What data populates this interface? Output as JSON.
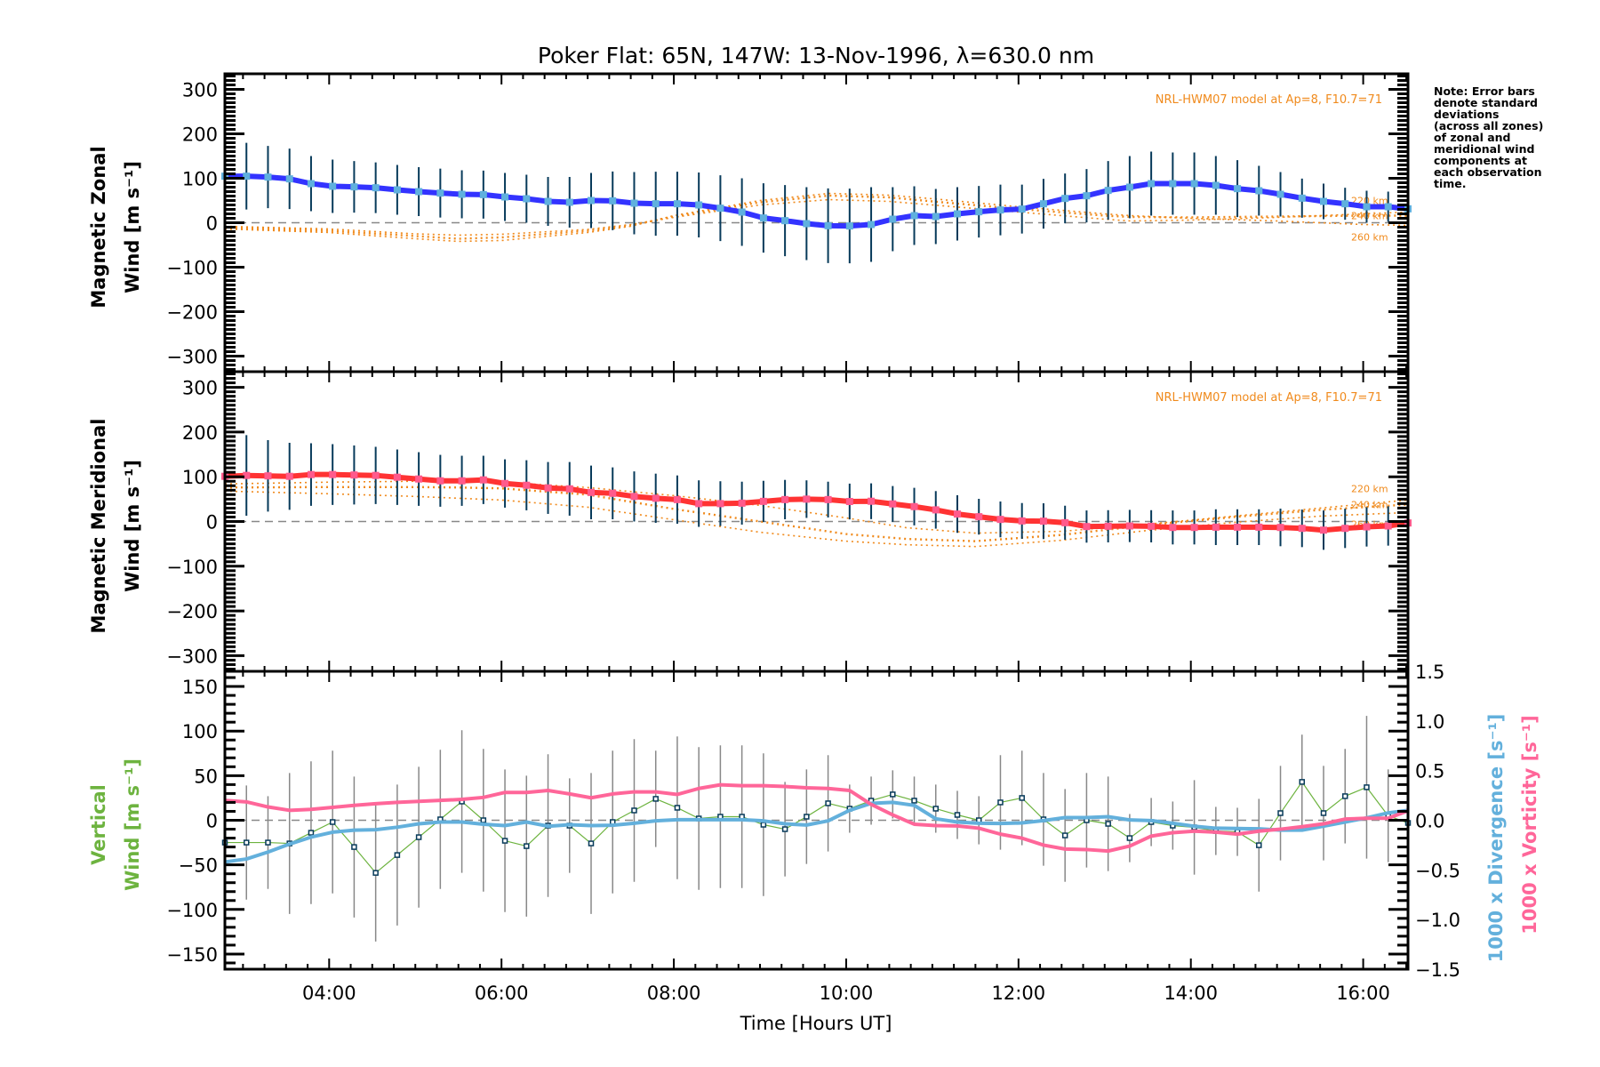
{
  "chart_data": {
    "type": "line",
    "title": "Poker Flat: 65N, 147W: 13-Nov-1996, λ=630.0 nm",
    "note": [
      "Note: Error bars",
      "denote standard",
      "deviations",
      "(across all zones)",
      "of zonal and",
      "meridional wind",
      "components at",
      "each observation",
      "time."
    ],
    "xlabel": "Time [Hours UT]",
    "x_ticks": [
      {
        "value": 4,
        "label": "04:00"
      },
      {
        "value": 6,
        "label": "06:00"
      },
      {
        "value": 8,
        "label": "08:00"
      },
      {
        "value": 10,
        "label": "10:00"
      },
      {
        "value": 12,
        "label": "12:00"
      },
      {
        "value": 14,
        "label": "14:00"
      },
      {
        "value": 16,
        "label": "16:00"
      }
    ],
    "xlim": [
      2.79,
      16.52
    ],
    "x_start_hours": 2.79,
    "x_step_hours": 0.25,
    "panels": [
      {
        "name": "zonal",
        "ylabel_lines": [
          "Magnetic Zonal",
          "Wind [m s⁻¹]"
        ],
        "ylim": [
          -335,
          335
        ],
        "y_ticks": [
          300,
          200,
          100,
          0,
          -100,
          -200,
          -300
        ],
        "model_label": "NRL-HWM07 model at Ap=8, F10.7=71",
        "series": [
          {
            "name": "Magnetic Zonal Wind",
            "color": "#3333ff",
            "values": [
              104.7,
              104.7,
              102.7,
              98.7,
              88,
              82,
              80.7,
              78.7,
              74,
              70,
              66.7,
              64,
              63.3,
              58,
              54,
              48,
              46,
              50,
              49.3,
              44,
              42.7,
              42.7,
              40,
              32.7,
              24,
              10.7,
              4.7,
              -2,
              -6.7,
              -7.3,
              -4,
              8,
              16,
              14,
              20,
              24.7,
              28.7,
              30.7,
              42.7,
              54.7,
              60.7,
              72.7,
              80,
              88,
              88,
              88,
              84,
              76.7,
              72,
              64,
              55.3,
              48,
              42.7,
              36,
              36,
              31.3
            ],
            "error": [
              75,
              75,
              70,
              68,
              62,
              60,
              58,
              57,
              56,
              55,
              55,
              54,
              54,
              54,
              54,
              55,
              57,
              62,
              66,
              70,
              72,
              72,
              73,
              74,
              76,
              78,
              80,
              82,
              84,
              84,
              84,
              72,
              66,
              62,
              60,
              58,
              57,
              55,
              56,
              56,
              60,
              66,
              70,
              72,
              70,
              70,
              66,
              64,
              56,
              50,
              44,
              40,
              36,
              36,
              34,
              30
            ]
          }
        ],
        "model": [
          {
            "name": "220 km",
            "x": [
              2.79,
              4,
              5,
              5.5,
              6,
              7,
              7.5,
              8,
              9,
              9.8,
              10.5,
              11,
              12,
              13,
              13.3,
              14,
              15,
              16,
              16.52
            ],
            "values": [
              -8,
              -14,
              -25,
              -28,
              -26,
              -15,
              -4,
              12,
              40,
              52,
              48,
              40,
              24,
              8,
              4,
              6,
              12,
              20,
              24
            ]
          },
          {
            "name": "240 km",
            "x": [
              2.79,
              4,
              5,
              5.5,
              6,
              7,
              7.5,
              8,
              9,
              9.8,
              10.5,
              11,
              12,
              13,
              13.3,
              14,
              15,
              16,
              16.52
            ],
            "values": [
              -11,
              -18,
              -30,
              -36,
              -33,
              -18,
              -6,
              14,
              46,
              61,
              57,
              48,
              31,
              16,
              13,
              12,
              14,
              16,
              16
            ]
          },
          {
            "name": "260 km",
            "x": [
              2.79,
              4,
              5,
              5.5,
              6,
              7,
              7.5,
              8,
              9,
              9.8,
              10.5,
              11,
              12,
              13,
              13.3,
              14,
              15,
              16,
              16.52
            ],
            "values": [
              -14,
              -22,
              -36,
              -42,
              -40,
              -22,
              -8,
              16,
              50,
              66,
              62,
              54,
              36,
              20,
              16,
              10,
              4,
              -4,
              -6
            ]
          }
        ]
      },
      {
        "name": "meridional",
        "ylabel_lines": [
          "Magnetic Meridional",
          "Wind [m s⁻¹]"
        ],
        "ylim": [
          -335,
          335
        ],
        "y_ticks": [
          300,
          200,
          100,
          0,
          -100,
          -200,
          -300
        ],
        "model_label": "NRL-HWM07 model at Ap=8, F10.7=71",
        "series": [
          {
            "name": "Magnetic Meridional Wind",
            "color": "#ff3333",
            "values": [
              101,
              103,
              102,
              101,
              105,
              105,
              104,
              103,
              99,
              95,
              91,
              91,
              93,
              85,
              81,
              75,
              73,
              65,
              63,
              56,
              52,
              49,
              40,
              40,
              41,
              45,
              49,
              50,
              49,
              44.7,
              45.3,
              39.3,
              33.3,
              26,
              16.7,
              10.7,
              4.7,
              1.3,
              0.7,
              -2.7,
              -11.3,
              -10.7,
              -10,
              -10.7,
              -13.3,
              -13.3,
              -12.7,
              -12.7,
              -12.7,
              -13.3,
              -15.3,
              -19.3,
              -15.3,
              -12,
              -10,
              -3.3
            ],
            "error": [
              95,
              90,
              80,
              75,
              70,
              68,
              66,
              64,
              62,
              60,
              58,
              56,
              54,
              54,
              56,
              58,
              60,
              60,
              58,
              56,
              55,
              54,
              52,
              50,
              48,
              46,
              44,
              42,
              40,
              40,
              40,
              40,
              42,
              42,
              42,
              40,
              40,
              40,
              40,
              38,
              36,
              36,
              36,
              36,
              38,
              38,
              40,
              40,
              40,
              42,
              42,
              44,
              44,
              44,
              44,
              44
            ]
          }
        ],
        "model": [
          {
            "name": "220 km",
            "x": [
              2.79,
              4,
              5,
              5.5,
              6,
              7,
              8,
              9,
              10,
              10.7,
              11.5,
              12.5,
              13.5,
              14.5,
              15.5,
              16.52
            ],
            "values": [
              84,
              88,
              90,
              90,
              88,
              76,
              58,
              36,
              8,
              -14,
              -26,
              -22,
              -6,
              12,
              30,
              48
            ]
          },
          {
            "name": "240 km",
            "x": [
              2.79,
              4,
              5,
              5.5,
              6,
              7,
              8,
              9,
              10,
              10.7,
              11.5,
              12.5,
              13.5,
              14.5,
              15.5,
              16.52
            ],
            "values": [
              76,
              77,
              77,
              76,
              74,
              60,
              28,
              0,
              -28,
              -39,
              -44,
              -30,
              -8,
              10,
              26,
              38
            ]
          },
          {
            "name": "260 km",
            "x": [
              2.79,
              4,
              5,
              5.5,
              6,
              7,
              8,
              9,
              10,
              10.7,
              11.5,
              12.5,
              13.5,
              14.5,
              15.5,
              16.52
            ],
            "values": [
              68,
              62,
              56,
              52,
              48,
              32,
              4,
              -24,
              -44,
              -52,
              -56,
              -42,
              -20,
              -2,
              12,
              20
            ]
          }
        ]
      },
      {
        "name": "vertical",
        "ylabel_lines": [
          "Vertical",
          "Wind [m s⁻¹]"
        ],
        "ylabel_color": "#6db33f",
        "ylim": [
          -167,
          167
        ],
        "y_ticks": [
          150,
          100,
          50,
          0,
          -50,
          -100,
          -150
        ],
        "y2lim": [
          -1.5,
          1.5
        ],
        "y2_ticks": [
          {
            "value": 1.5,
            "label": "1.5"
          },
          {
            "value": 1.0,
            "label": "1.0"
          },
          {
            "value": 0.5,
            "label": "0.5"
          },
          {
            "value": 0.0,
            "label": "0.0"
          },
          {
            "value": -0.5,
            "label": "−0.5"
          },
          {
            "value": -1.0,
            "label": "−1.0"
          },
          {
            "value": -1.5,
            "label": "−1.5"
          }
        ],
        "y2label_divergence": "1000 x Divergence [s⁻¹]",
        "y2label_vorticity": "1000 x Vorticity [s⁻¹]",
        "series": [
          {
            "name": "Vertical Wind",
            "color": "#6db33f",
            "axis": "left",
            "values": [
              -25,
              -25,
              -25,
              -26,
              -14,
              -2,
              -30,
              -59,
              -39,
              -19,
              1,
              21,
              0,
              -23,
              -29,
              -6,
              -6,
              -26,
              -2,
              11,
              24,
              14,
              2,
              4,
              4,
              -5,
              -10,
              4,
              19,
              13,
              22,
              29,
              22,
              13,
              6,
              0,
              20,
              25,
              1,
              -17,
              0,
              -4,
              -20,
              -2,
              -6,
              -8,
              -12,
              -13,
              -28,
              8,
              43,
              8,
              27,
              37,
              5,
              -3
            ],
            "error": [
              64,
              64,
              52,
              79,
              80,
              80,
              79,
              77,
              79,
              79,
              78,
              80,
              80,
              80,
              79,
              80,
              53,
              79,
              80,
              80,
              54,
              80,
              80,
              80,
              80,
              80,
              53,
              53,
              54,
              27,
              27,
              27,
              27,
              27,
              27,
              27,
              53,
              53,
              52,
              52,
              53,
              53,
              27,
              27,
              27,
              53,
              27,
              27,
              52,
              53,
              53,
              53,
              53,
              80,
              52,
              27
            ]
          },
          {
            "name": "1000 x Divergence",
            "color": "#63b0dc",
            "axis": "right",
            "values": [
              -0.42,
              -0.39,
              -0.32,
              -0.24,
              -0.17,
              -0.12,
              -0.1,
              -0.095,
              -0.07,
              -0.036,
              -0.018,
              -0.018,
              -0.04,
              -0.054,
              -0.018,
              -0.06,
              -0.045,
              -0.054,
              -0.05,
              -0.03,
              -0.006,
              0.006,
              0.006,
              0.006,
              0.006,
              -0.006,
              -0.036,
              -0.048,
              -0.006,
              0.1,
              0.17,
              0.18,
              0.15,
              0.015,
              -0.018,
              -0.03,
              -0.033,
              -0.027,
              -0.003,
              0.027,
              0.027,
              0.036,
              0.003,
              -0.003,
              -0.03,
              -0.06,
              -0.08,
              -0.083,
              -0.086,
              -0.1,
              -0.1,
              -0.06,
              -0.018,
              0.024,
              0.074,
              0.1
            ]
          },
          {
            "name": "1000 x Vorticity",
            "color": "#ff6699",
            "axis": "right",
            "values": [
              0.2,
              0.185,
              0.134,
              0.1,
              0.11,
              0.13,
              0.15,
              0.167,
              0.18,
              0.19,
              0.2,
              0.21,
              0.23,
              0.28,
              0.28,
              0.3,
              0.265,
              0.226,
              0.265,
              0.286,
              0.286,
              0.26,
              0.32,
              0.357,
              0.348,
              0.348,
              0.34,
              0.327,
              0.32,
              0.3,
              0.16,
              0.054,
              -0.04,
              -0.054,
              -0.057,
              -0.08,
              -0.14,
              -0.18,
              -0.25,
              -0.29,
              -0.295,
              -0.31,
              -0.26,
              -0.16,
              -0.125,
              -0.11,
              -0.12,
              -0.14,
              -0.11,
              -0.09,
              -0.065,
              -0.036,
              0.012,
              0.02,
              0.02,
              0.095
            ]
          }
        ]
      }
    ],
    "grid": false,
    "legend": "none"
  }
}
